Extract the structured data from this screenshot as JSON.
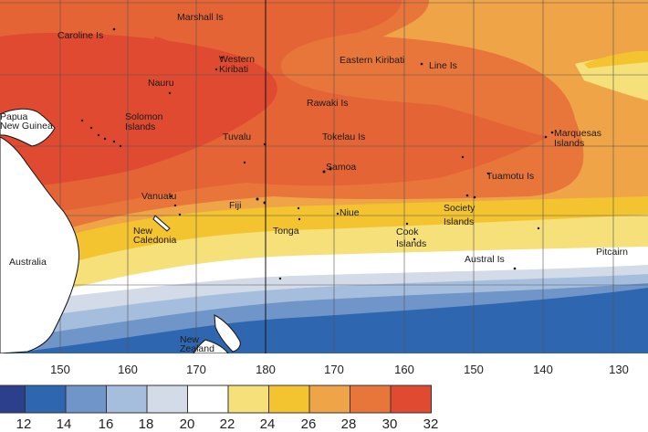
{
  "places": [
    {
      "id": "marshall-is",
      "text": "Marshall Is"
    },
    {
      "id": "caroline-is",
      "text": "Caroline Is"
    },
    {
      "id": "western-kiribati",
      "text": "Western\nKiribati"
    },
    {
      "id": "eastern-kiribati",
      "text": "Eastern Kiribati"
    },
    {
      "id": "line-is",
      "text": "Line Is"
    },
    {
      "id": "nauru",
      "text": "Nauru"
    },
    {
      "id": "rawaki-is",
      "text": "Rawaki Is"
    },
    {
      "id": "papua-new-guinea",
      "text": "Papua\nNew Guinea"
    },
    {
      "id": "solomon-islands",
      "text": "Solomon\nIslands"
    },
    {
      "id": "tuvalu",
      "text": "Tuvalu"
    },
    {
      "id": "tokelau-is",
      "text": "Tokelau Is"
    },
    {
      "id": "marquesas-islands",
      "text": "Marquesas\nIslands"
    },
    {
      "id": "samoa",
      "text": "Samoa"
    },
    {
      "id": "tuamotu-is",
      "text": "Tuamotu Is"
    },
    {
      "id": "vanuatu",
      "text": "Vanuatu"
    },
    {
      "id": "fiji",
      "text": "Fiji"
    },
    {
      "id": "niue",
      "text": "Niue"
    },
    {
      "id": "society-islands",
      "text": "Society\nIslands"
    },
    {
      "id": "new-caledonia",
      "text": "New\nCaledonia"
    },
    {
      "id": "tonga",
      "text": "Tonga"
    },
    {
      "id": "cook-islands",
      "text": "Cook\nIslands"
    },
    {
      "id": "australia",
      "text": "Australia"
    },
    {
      "id": "austral-is",
      "text": "Austral Is"
    },
    {
      "id": "pitcairn",
      "text": "Pitcairn"
    },
    {
      "id": "new-zealand",
      "text": "New\nZealand"
    }
  ],
  "longitude_labels": [
    "150",
    "160",
    "170",
    "180",
    "170",
    "160",
    "150",
    "140",
    "130"
  ],
  "legend": {
    "ticks": [
      "12",
      "14",
      "16",
      "18",
      "20",
      "22",
      "24",
      "26",
      "28",
      "30",
      "32"
    ],
    "colors": [
      "#2b3f8c",
      "#2f66b0",
      "#6f95c9",
      "#a6bedd",
      "#d3dbe8",
      "#ffffff",
      "#f5e07a",
      "#f4c430",
      "#f0a448",
      "#e8763a",
      "#e04a30"
    ]
  },
  "colors": {
    "land": "#ffffff",
    "coast": "#111111",
    "grid": "#555555"
  }
}
